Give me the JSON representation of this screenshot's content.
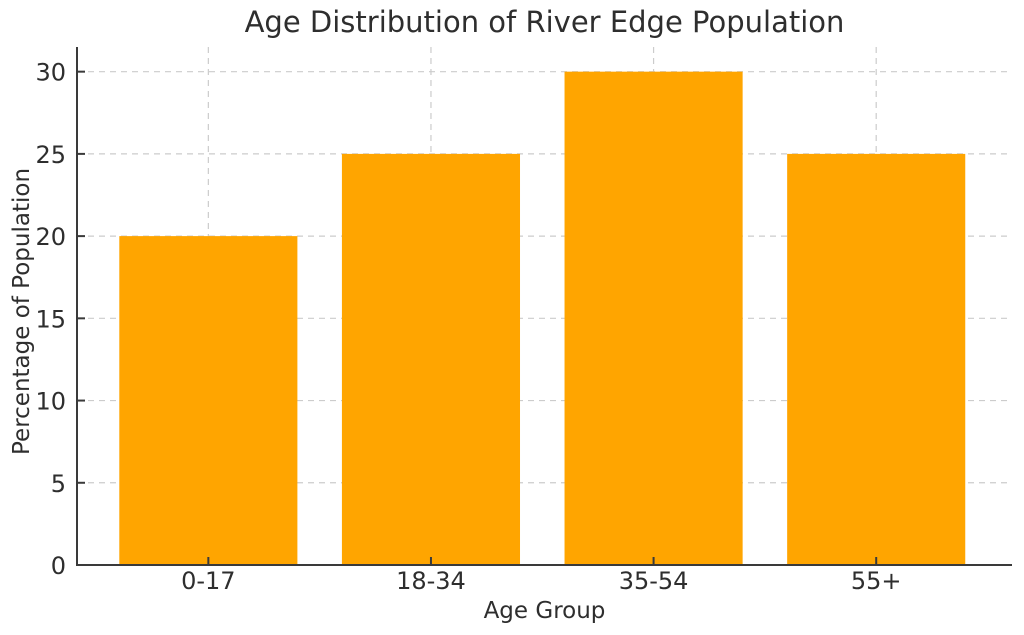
{
  "chart_data": {
    "type": "bar",
    "title": "Age Distribution of River Edge Population",
    "xlabel": "Age Group",
    "ylabel": "Percentage of Population",
    "categories": [
      "0-17",
      "18-34",
      "35-54",
      "55+"
    ],
    "values": [
      20,
      25,
      30,
      25
    ],
    "yticks": [
      0,
      5,
      10,
      15,
      20,
      25,
      30
    ],
    "ylim": [
      0,
      31.5
    ],
    "xlim": [
      -0.59,
      3.61
    ],
    "grid": "dashed",
    "legend": "none",
    "bar_color": "#ffa500",
    "grid_color": "#cccccc",
    "axis_color": "#3a3a3a",
    "text_color": "#2e2e2e"
  }
}
